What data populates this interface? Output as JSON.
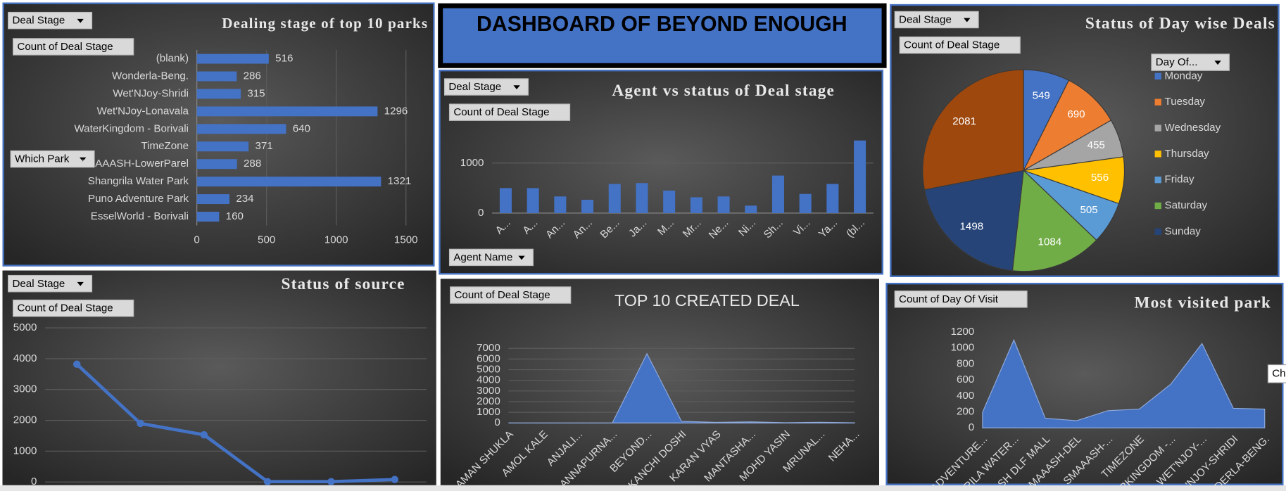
{
  "title": "DASHBOARD OF BEYOND ENOUGH",
  "tooltip": "Cha",
  "chart_data": [
    {
      "type": "hbar",
      "title": "Dealing stage of top 10 parks",
      "buttons": [
        "Deal Stage",
        "Count of Deal Stage",
        "Which Park"
      ],
      "categories": [
        "(blank)",
        "Wonderla-Beng.",
        "Wet'NJoy-Shridi",
        "Wet'NJoy-Lonavala",
        "WaterKingdom - Borivali",
        "TimeZone",
        "SMAAASH-LowerParel",
        "Shangrila Water Park",
        "Puno Adventure Park",
        "EsselWorld - Borivali"
      ],
      "values": [
        516,
        286,
        315,
        1296,
        640,
        371,
        288,
        1321,
        234,
        160
      ],
      "color": "#4472c4",
      "xlim": [
        0,
        1500
      ],
      "xticks": [
        0,
        500,
        1000,
        1500
      ],
      "grid": true
    },
    {
      "type": "bar",
      "title": "Agent vs status of Deal stage",
      "buttons": [
        "Deal Stage",
        "Count of Deal Stage",
        "Agent Name"
      ],
      "categories": [
        "A...",
        "A...",
        "An...",
        "An...",
        "Be...",
        "Ja...",
        "M...",
        "Mr...",
        "Ne...",
        "Ni...",
        "Sh...",
        "Vi...",
        "Ya...",
        "(bl..."
      ],
      "values": [
        500,
        500,
        333,
        267,
        583,
        600,
        450,
        317,
        333,
        150,
        750,
        383,
        583,
        1450
      ],
      "color": "#4472c4",
      "ylim": [
        0,
        1800
      ],
      "yticks": [
        0,
        1000
      ],
      "grid": true
    },
    {
      "type": "pie",
      "title": "Status of Day wise Deals",
      "buttons": [
        "Deal Stage",
        "Count of Deal Stage",
        "Day Of..."
      ],
      "categories": [
        "Monday",
        "Tuesday",
        "Wednesday",
        "Thursday",
        "Friday",
        "Saturday",
        "Sunday",
        null
      ],
      "values": [
        549,
        690,
        455,
        556,
        505,
        1084,
        1498,
        2081
      ],
      "colors": [
        "#4472c4",
        "#ed7d31",
        "#a5a5a5",
        "#ffc000",
        "#5b9bd5",
        "#70ad47",
        "#264478",
        "#9e480e"
      ]
    },
    {
      "type": "line",
      "title": "Status of source",
      "buttons": [
        "Deal Stage",
        "Count of Deal Stage"
      ],
      "categories": [
        null,
        null,
        null,
        null,
        null,
        null
      ],
      "values": [
        3820,
        1900,
        1530,
        10,
        10,
        80
      ],
      "color": "#4472c4",
      "ylim": [
        0,
        5000
      ],
      "yticks": [
        0,
        1000,
        2000,
        3000,
        4000,
        5000
      ],
      "grid": true
    },
    {
      "type": "area",
      "title": "TOP 10 CREATED DEAL",
      "buttons": [
        "Count of Deal Stage"
      ],
      "categories": [
        "AMAN SHUKLA",
        "AMOL KALE",
        "ANJALI...",
        "ANNAPURNA...",
        "BEYOND...",
        "KANCHI DOSHI",
        "KARAN VYAS",
        "MANTASHA...",
        "MOHD YASIN",
        "MRUNAL...",
        "NEHA..."
      ],
      "values": [
        0,
        0,
        0,
        0,
        6500,
        150,
        50,
        100,
        20,
        60,
        10
      ],
      "color": "#4472c4",
      "ylim": [
        0,
        7000
      ],
      "yticks": [
        0,
        1000,
        2000,
        3000,
        4000,
        5000,
        6000,
        7000
      ],
      "grid": true
    },
    {
      "type": "area",
      "title": "Most visited park",
      "buttons": [
        "Count of Day Of Visit"
      ],
      "categories": [
        "O ADVENTURE...",
        "GRILA WATER...",
        "ASH DLF MALL",
        "MAAASH-DEL",
        "SMAAASH-...",
        "TIMEZONE",
        "ERKINGDOM -...",
        "WET'NJOY-...",
        "'NJOY-SHRIDI",
        "DERLA-BENG."
      ],
      "values": [
        195,
        1100,
        120,
        90,
        215,
        235,
        545,
        1055,
        245,
        235
      ],
      "color": "#4472c4",
      "ylim": [
        0,
        1200
      ],
      "yticks": [
        0,
        200,
        400,
        600,
        800,
        1000,
        1200
      ],
      "grid": false
    }
  ]
}
